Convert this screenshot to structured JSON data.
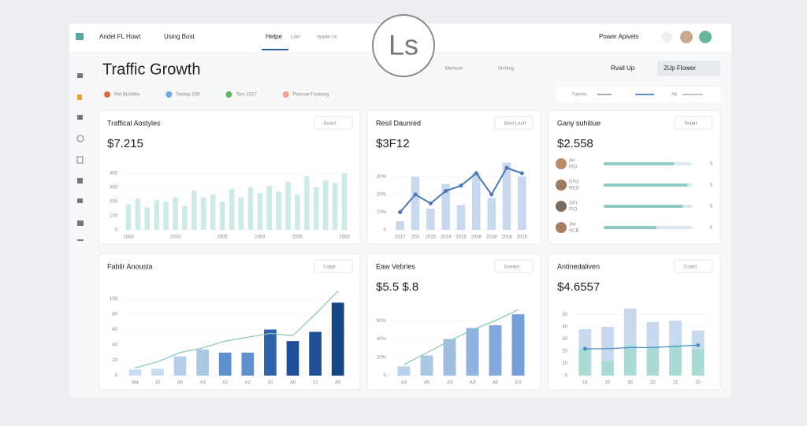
{
  "header": {
    "brand": "Andel FL Howt",
    "menu": "Using Bost",
    "tabs": [
      "Helpe",
      "Late",
      "Applet Uc"
    ],
    "logo": "Ls",
    "action": "Power Apivels"
  },
  "page": {
    "title": "Traffic Growth",
    "filter": "Menture:",
    "search": "Stching",
    "range": "Rvall Up",
    "view": "2Up Flower"
  },
  "legend": [
    {
      "label": "Ret Busbles",
      "color": "#e0674a"
    },
    {
      "label": "Sedsip 208",
      "color": "#6fa8dc"
    },
    {
      "label": "Tars 2017",
      "color": "#5cb85c"
    },
    {
      "label": "Porinue Frunking",
      "color": "#f0a08a"
    }
  ],
  "legend_right": [
    "Farrins",
    "Ab"
  ],
  "panels": [
    {
      "title": "Traffical Aostyles",
      "value": "$7.215",
      "button": "Eoact",
      "chart": {
        "type": "bar",
        "bar_color": "#cde9e8",
        "ylim": [
          0,
          500
        ],
        "yticks": [
          0,
          100,
          200,
          300,
          400
        ],
        "categories": [
          "1003",
          null,
          null,
          null,
          null,
          "2003",
          null,
          null,
          null,
          null,
          "2005",
          null,
          null,
          null,
          "2003",
          null,
          null,
          null,
          "2005",
          null,
          null,
          null,
          null,
          "2003"
        ],
        "values": [
          180,
          220,
          160,
          210,
          200,
          230,
          170,
          280,
          230,
          250,
          200,
          290,
          230,
          300,
          260,
          310,
          270,
          340,
          250,
          380,
          300,
          350,
          330,
          400
        ]
      }
    },
    {
      "title": "Resil Daunred",
      "value": "$3F12",
      "button": "Best Lourt",
      "chart": {
        "type": "bar_line",
        "bar_color": "#c9d8ee",
        "line_color": "#4a78b0",
        "ylim": [
          0,
          40
        ],
        "yticks": [
          0,
          {
            "value": 10,
            "label": "10%"
          },
          {
            "value": 20,
            "label": "20%"
          },
          {
            "value": 30,
            "label": "30%"
          }
        ],
        "categories": [
          "2017",
          "203",
          "2015",
          "2019",
          "2016",
          "2008",
          "2018",
          "2018",
          "2016"
        ],
        "values": [
          5,
          30,
          12,
          26,
          14,
          32,
          18,
          38,
          30
        ],
        "line": [
          10,
          20,
          15,
          22,
          25,
          32,
          20,
          35,
          32
        ]
      }
    },
    {
      "title": "Gany suhitiue",
      "value": "$2.558",
      "button": "Teaatt",
      "chart": {
        "type": "progress",
        "bar_color": "#8fc9c4",
        "track_color": "#dbe9ee",
        "xlim": [
          0,
          100
        ],
        "rows": [
          {
            "label": "Arr",
            "sub": "PIO",
            "count": 3,
            "value": 80
          },
          {
            "label": "STG",
            "sub": "RED",
            "count": 3,
            "value": 95
          },
          {
            "label": "GFI",
            "sub": "PIO",
            "count": 3,
            "value": 90
          },
          {
            "label": "Jwl",
            "sub": "ACB",
            "count": 4,
            "value": 60
          }
        ]
      }
    },
    {
      "title": "Fablir Anousta",
      "button": "Liage",
      "chart": {
        "type": "bar_line",
        "line_color": "#8cc7c0",
        "ylim": [
          0,
          120
        ],
        "yticks": [
          0,
          20,
          40,
          60,
          80,
          100
        ],
        "colors": [
          "#c8ddef",
          "#c8ddef",
          "#b5cfea",
          "#aac8e6",
          "#5f8fcc",
          "#5f8fcc",
          "#2f62a8",
          "#1f4f95",
          "#1f4f95",
          "#164585"
        ],
        "categories": [
          "Wa",
          "10",
          "A0",
          "A3",
          "A2",
          "A2",
          "10",
          "A0",
          "12",
          "A5"
        ],
        "values": [
          8,
          9,
          25,
          34,
          30,
          30,
          60,
          45,
          57,
          95
        ],
        "line": [
          10,
          18,
          30,
          36,
          45,
          50,
          55,
          52,
          80,
          110
        ]
      }
    },
    {
      "title": "Eaw Vebries",
      "value": "$5.5 $.8",
      "button": "Eoeant",
      "chart": {
        "type": "bar_line",
        "line_color": "#8cc7c0",
        "ylim": [
          0,
          80
        ],
        "yticks": [
          0,
          {
            "value": 20,
            "label": "20%"
          },
          {
            "value": 40,
            "label": "40%"
          },
          {
            "value": 60,
            "label": "60%"
          }
        ],
        "colors": [
          "#b9d1ea",
          "#aac7e6",
          "#9dbde2",
          "#8fb3de",
          "#82a9da",
          "#759fd6"
        ],
        "categories": [
          "A3",
          "A5",
          "A3",
          "A3",
          "A0",
          "EA"
        ],
        "values": [
          10,
          22,
          40,
          52,
          55,
          67
        ],
        "line": [
          12,
          25,
          38,
          50,
          60,
          72
        ]
      }
    },
    {
      "title": "Antinedaliven",
      "value": "$4.6557",
      "button": "Coant",
      "chart": {
        "type": "stacked_line",
        "line_color": "#4a90c8",
        "ylim": [
          0,
          60
        ],
        "yticks": [
          0,
          10,
          20,
          30,
          40,
          50
        ],
        "categories": [
          "15",
          "20",
          "30",
          "20",
          "21",
          "20"
        ],
        "series": [
          {
            "color": "#a9dbd4",
            "values": [
              22,
              12,
              25,
              24,
              25,
              22
            ]
          },
          {
            "color": "#c7d9ec",
            "values": [
              16,
              28,
              30,
              20,
              20,
              15
            ]
          }
        ],
        "line": [
          22,
          22,
          23,
          23,
          24,
          25
        ]
      }
    }
  ]
}
